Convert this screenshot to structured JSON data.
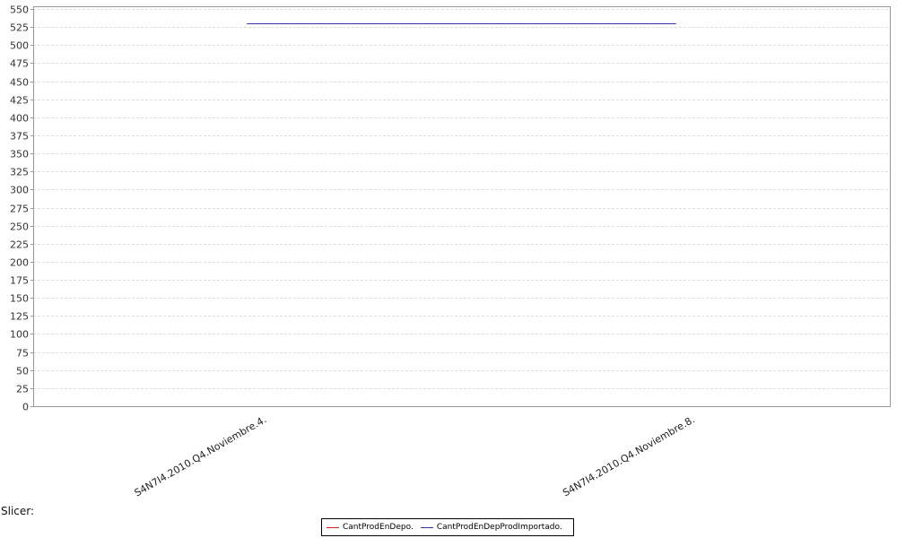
{
  "chart_data": {
    "type": "line",
    "categories": [
      "S4N7I4.2010.Q4.Noviembre.4.",
      "S4N7I4.2010.Q4.Noviembre.8."
    ],
    "series": [
      {
        "name": "CantProdEnDepo.",
        "values": [
          530,
          530
        ],
        "color": "#cc2222"
      },
      {
        "name": "CantProdEnDepProdImportado.",
        "values": [
          530,
          530
        ],
        "color": "#3333aa"
      }
    ],
    "yticks": [
      0,
      25,
      50,
      75,
      100,
      125,
      150,
      175,
      200,
      225,
      250,
      275,
      300,
      325,
      350,
      375,
      400,
      425,
      450,
      475,
      500,
      525,
      550
    ],
    "ylim": [
      0,
      550
    ],
    "grid": true,
    "legend_position": "bottom"
  },
  "footer": {
    "slicer_label": "Slicer:"
  }
}
